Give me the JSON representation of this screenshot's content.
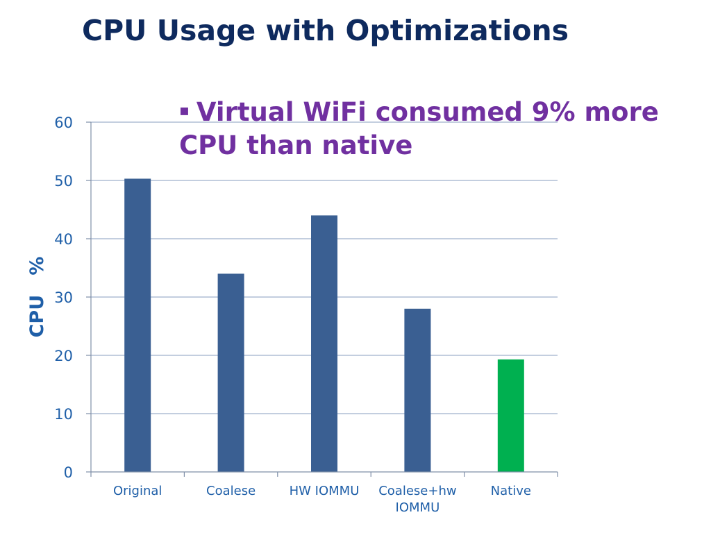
{
  "slide": {
    "title": "CPU Usage with Optimizations",
    "bullet_marker": "▪",
    "bullet_text": "Virtual WiFi consumed 9% more CPU than native"
  },
  "chart_data": {
    "type": "bar",
    "title": "",
    "xlabel": "",
    "ylabel": "CPU   %",
    "ylim": [
      0,
      60
    ],
    "yticks": [
      0,
      10,
      20,
      30,
      40,
      50,
      60
    ],
    "grid": true,
    "categories": [
      [
        "Original"
      ],
      [
        "Coalese"
      ],
      [
        "HW IOMMU"
      ],
      [
        "Coalese+hw",
        "IOMMU"
      ],
      [
        "Native"
      ]
    ],
    "values": [
      50.3,
      34,
      44,
      28,
      19.3
    ],
    "colors": [
      "#3a5f92",
      "#3a5f92",
      "#3a5f92",
      "#3a5f92",
      "#00b050"
    ]
  }
}
